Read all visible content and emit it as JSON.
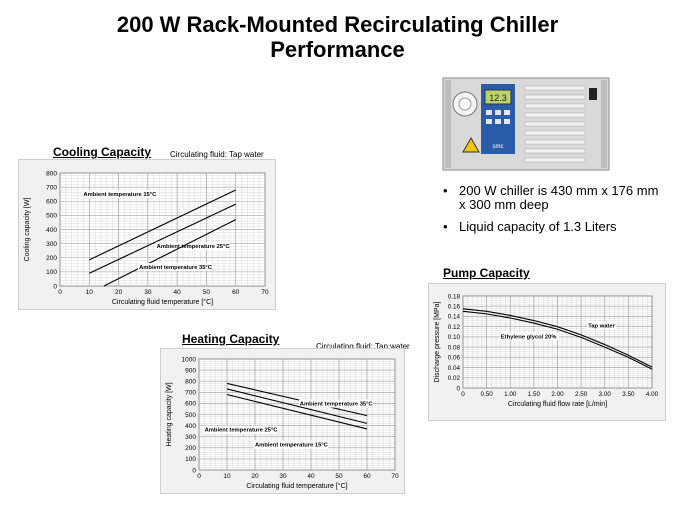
{
  "title_line1": "200 W Rack-Mounted Recirculating Chiller",
  "title_line2": "Performance",
  "bullets": [
    "200 W chiller is 430 mm x 176 mm x 300 mm deep",
    "Liquid capacity of 1.3 Liters"
  ],
  "photo": {
    "display_text": "12.3",
    "brand_text": "smc"
  },
  "colors": {
    "panel_bg": "#f1f1f1",
    "grid": "#9a9a9a",
    "line": "#000000",
    "photo_body": "#d9d9d9",
    "panel_blue": "#2a5caa"
  },
  "chart_data": [
    {
      "id": "cooling",
      "type": "line",
      "section_label": "Cooling Capacity",
      "fluid_note": "Circulating fluid: Tap water",
      "xlabel": "Circulating fluid temperature [°C]",
      "ylabel": "Cooling capacity [W]",
      "xlim": [
        0,
        70
      ],
      "ylim": [
        0,
        800
      ],
      "xticks": [
        0,
        10,
        20,
        30,
        40,
        50,
        60,
        70
      ],
      "yticks": [
        0,
        100,
        200,
        300,
        400,
        500,
        600,
        700,
        800
      ],
      "grid": true,
      "series": [
        {
          "name": "Ambient temperature 15°C",
          "x": [
            10,
            60
          ],
          "y": [
            185,
            680
          ]
        },
        {
          "name": "Ambient temperature 25°C",
          "x": [
            10,
            60
          ],
          "y": [
            90,
            580
          ]
        },
        {
          "name": "Ambient temperature 35°C",
          "x": [
            15,
            60
          ],
          "y": [
            0,
            470
          ]
        }
      ]
    },
    {
      "id": "heating",
      "type": "line",
      "section_label": "Heating Capacity",
      "fluid_note": "Circulating fluid: Tap water",
      "xlabel": "Circulating fluid temperature [°C]",
      "ylabel": "Heating capacity [W]",
      "xlim": [
        0,
        70
      ],
      "ylim": [
        0,
        1000
      ],
      "xticks": [
        0,
        10,
        20,
        30,
        40,
        50,
        60,
        70
      ],
      "yticks": [
        0,
        100,
        200,
        300,
        400,
        500,
        600,
        700,
        800,
        900,
        1000
      ],
      "grid": true,
      "series": [
        {
          "name": "Ambient temperature 35°C",
          "x": [
            10,
            60
          ],
          "y": [
            780,
            490
          ]
        },
        {
          "name": "Ambient temperature 25°C",
          "x": [
            10,
            60
          ],
          "y": [
            730,
            420
          ]
        },
        {
          "name": "Ambient temperature 15°C",
          "x": [
            10,
            60
          ],
          "y": [
            680,
            370
          ]
        }
      ]
    },
    {
      "id": "pump",
      "type": "line",
      "section_label": "Pump Capacity",
      "fluid_note": "",
      "xlabel": "Circulating fluid flow rate [L/min]",
      "ylabel": "Discharge pressure [MPa]",
      "xlim": [
        0,
        4
      ],
      "ylim": [
        0,
        0.18
      ],
      "xticks": [
        0,
        0.5,
        1,
        1.5,
        2,
        2.5,
        3,
        3.5,
        4
      ],
      "yticks": [
        0,
        0.02,
        0.04,
        0.06,
        0.08,
        0.1,
        0.12,
        0.14,
        0.16,
        0.18
      ],
      "grid": true,
      "series": [
        {
          "name": "Tap water",
          "x": [
            0,
            0.5,
            1,
            1.5,
            2,
            2.5,
            3,
            3.5,
            4
          ],
          "y": [
            0.155,
            0.15,
            0.142,
            0.132,
            0.12,
            0.104,
            0.085,
            0.064,
            0.041
          ]
        },
        {
          "name": "Ethylene glycol 20%",
          "x": [
            0,
            0.5,
            1,
            1.5,
            2,
            2.5,
            3,
            3.5,
            4
          ],
          "y": [
            0.15,
            0.145,
            0.137,
            0.127,
            0.115,
            0.099,
            0.08,
            0.06,
            0.037
          ]
        }
      ]
    }
  ]
}
